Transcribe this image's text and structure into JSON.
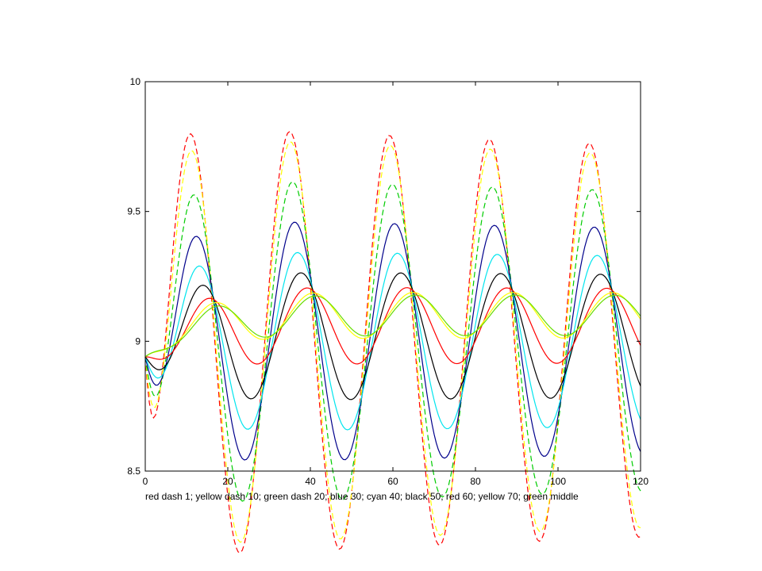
{
  "chart_data": {
    "type": "line",
    "title": "",
    "xlabel": "red dash 1; yellow dash 10; green dash 20; blue 30; cyan 40; black 50; red 60; yellow 70; green middle",
    "ylabel": "",
    "xlim": [
      0,
      120
    ],
    "ylim": [
      8.5,
      10
    ],
    "x_ticks": [
      "0",
      "20",
      "40",
      "60",
      "80",
      "100",
      "120"
    ],
    "y_ticks": [
      "8.5",
      "9",
      "9.5",
      "10"
    ],
    "grid": false,
    "legend": "none",
    "period": 24.2,
    "series": [
      {
        "color": "#ff0000",
        "style": "dash",
        "base": 9.0,
        "amplitude": 0.83,
        "phase": 10.8,
        "decay": 0.09
      },
      {
        "color": "#ffff00",
        "style": "dash",
        "base": 9.0,
        "amplitude": 0.79,
        "phase": 11.0,
        "decay": 0.09
      },
      {
        "color": "#00cc00",
        "style": "dash",
        "base": 9.0,
        "amplitude": 0.63,
        "phase": 11.5,
        "decay": 0.08
      },
      {
        "color": "#00008b",
        "style": "solid",
        "base": 9.0,
        "amplitude": 0.47,
        "phase": 12.0,
        "decay": 0.07
      },
      {
        "color": "#00e5ee",
        "style": "solid",
        "base": 9.0,
        "amplitude": 0.35,
        "phase": 12.7,
        "decay": 0.06
      },
      {
        "color": "#000000",
        "style": "solid",
        "base": 9.02,
        "amplitude": 0.25,
        "phase": 13.5,
        "decay": 0.05
      },
      {
        "color": "#ff0000",
        "style": "solid",
        "base": 9.06,
        "amplitude": 0.15,
        "phase": 15.0,
        "decay": 0.04
      },
      {
        "color": "#ffff00",
        "style": "solid",
        "base": 9.1,
        "amplitude": 0.09,
        "phase": 16.5,
        "decay": 0.03
      },
      {
        "color": "#66dd00",
        "style": "solid",
        "base": 9.1,
        "amplitude": 0.08,
        "phase": 17.0,
        "decay": 0.03
      }
    ]
  }
}
